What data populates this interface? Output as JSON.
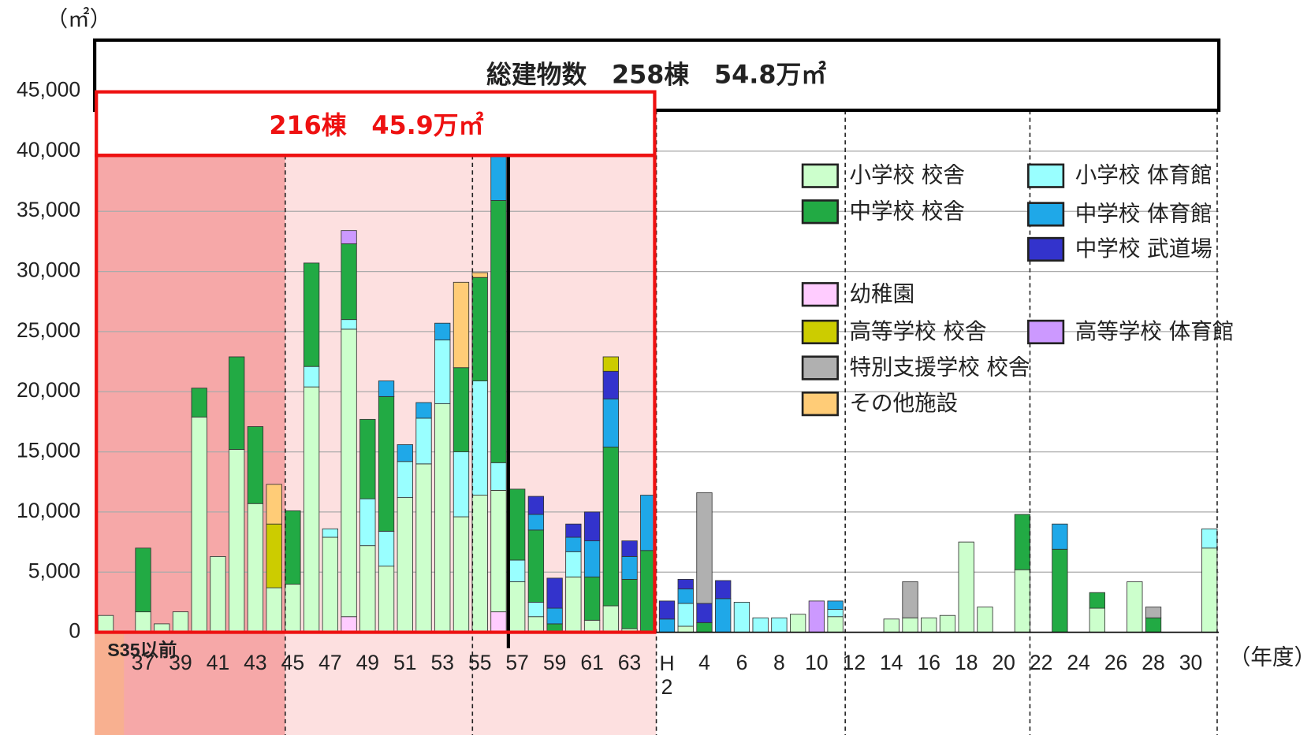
{
  "chart_data": {
    "type": "stacked_bar",
    "title": "総建物数　258棟　54.8万㎡",
    "subtitle": "216棟　45.9万㎡",
    "y_unit": "（㎡）",
    "x_unit": "（年度）",
    "categories": [
      "S35以前",
      null,
      "37",
      null,
      "39",
      null,
      "41",
      null,
      "43",
      null,
      "45",
      null,
      "47",
      null,
      "49",
      null,
      "51",
      null,
      "53",
      null,
      "55",
      null,
      "57",
      null,
      "59",
      null,
      "61",
      null,
      "63",
      null,
      "H2",
      null,
      "4",
      null,
      "6",
      null,
      "8",
      null,
      "10",
      null,
      "12",
      null,
      "14",
      null,
      "16",
      null,
      "18",
      null,
      "20",
      null,
      "22",
      null,
      "24",
      null,
      "26",
      null,
      "28",
      null,
      "30",
      null
    ],
    "ylim": [
      0,
      45000
    ],
    "yticks": [
      0,
      {
        "value": 5000,
        "label": "5,000"
      },
      {
        "value": 10000,
        "label": "10,000"
      },
      {
        "value": 15000,
        "label": "15,000"
      },
      {
        "value": 20000,
        "label": "20,000"
      },
      {
        "value": 25000,
        "label": "25,000"
      },
      {
        "value": 30000,
        "label": "30,000"
      },
      {
        "value": 35000,
        "label": "35,000"
      },
      {
        "value": 40000,
        "label": "40,000"
      },
      {
        "value": 45000,
        "label": "45,000"
      }
    ],
    "grid": true,
    "stacked": true,
    "series": [
      {
        "name": "幼稚園",
        "color": "#ffccff",
        "values": [
          0,
          0,
          0,
          0,
          0,
          0,
          0,
          0,
          0,
          0,
          0,
          0,
          0,
          1300,
          0,
          0,
          0,
          0,
          0,
          0,
          0,
          1700,
          0,
          0,
          0,
          0,
          0,
          0,
          0,
          0,
          0,
          0,
          0,
          0,
          0,
          0,
          0,
          0,
          0,
          0,
          0,
          0,
          0,
          0,
          0,
          0,
          0,
          0,
          0,
          0,
          0,
          0,
          0,
          0,
          0,
          0,
          0,
          0,
          0,
          0
        ]
      },
      {
        "name": "小学校 校舎",
        "color": "#ccffcc",
        "values": [
          1400,
          0,
          1700,
          700,
          1700,
          17900,
          6300,
          15200,
          10700,
          3700,
          4000,
          20400,
          7900,
          23900,
          7200,
          5500,
          11200,
          14000,
          19000,
          9600,
          11400,
          10100,
          4200,
          1300,
          0,
          4600,
          1000,
          2200,
          300,
          0,
          0,
          500,
          0,
          0,
          0,
          0,
          0,
          1500,
          0,
          1300,
          0,
          0,
          1100,
          1200,
          1200,
          1400,
          7500,
          2100,
          0,
          5200,
          0,
          0,
          0,
          2000,
          0,
          4200,
          0,
          0,
          0,
          7000
        ]
      },
      {
        "name": "小学校 体育館",
        "color": "#99ffff",
        "values": [
          0,
          0,
          0,
          0,
          0,
          0,
          0,
          0,
          0,
          0,
          0,
          1700,
          700,
          800,
          3900,
          2900,
          3000,
          3800,
          5300,
          5400,
          9500,
          2300,
          1800,
          1200,
          0,
          2100,
          0,
          0,
          0,
          0,
          0,
          1900,
          0,
          0,
          2500,
          1200,
          1200,
          0,
          0,
          600,
          0,
          0,
          0,
          0,
          0,
          0,
          0,
          0,
          0,
          0,
          0,
          0,
          0,
          0,
          0,
          0,
          0,
          0,
          0,
          1600
        ]
      },
      {
        "name": "中学校 校舎",
        "color": "#22aa44",
        "values": [
          0,
          0,
          5300,
          0,
          0,
          2400,
          0,
          7700,
          6400,
          0,
          6100,
          8600,
          0,
          6300,
          6600,
          11200,
          0,
          0,
          0,
          7000,
          8600,
          21800,
          5900,
          6000,
          700,
          0,
          3600,
          13200,
          4100,
          6800,
          0,
          0,
          800,
          0,
          0,
          0,
          0,
          0,
          0,
          0,
          0,
          0,
          0,
          0,
          0,
          0,
          0,
          0,
          0,
          4600,
          0,
          6900,
          0,
          1300,
          0,
          0,
          1200,
          0,
          0,
          0
        ]
      },
      {
        "name": "中学校 体育館",
        "color": "#1fa8e8",
        "values": [
          0,
          0,
          0,
          0,
          0,
          0,
          0,
          0,
          0,
          0,
          0,
          0,
          0,
          0,
          0,
          1300,
          1400,
          1300,
          1400,
          0,
          0,
          4600,
          0,
          1300,
          1300,
          1200,
          3000,
          4000,
          1900,
          4600,
          1100,
          1200,
          0,
          2800,
          0,
          0,
          0,
          0,
          0,
          700,
          0,
          0,
          0,
          0,
          0,
          0,
          0,
          0,
          0,
          0,
          0,
          2100,
          0,
          0,
          0,
          0,
          0,
          0,
          0,
          0
        ]
      },
      {
        "name": "中学校 武道場",
        "color": "#3333cc",
        "values": [
          0,
          0,
          0,
          0,
          0,
          0,
          0,
          0,
          0,
          0,
          0,
          0,
          0,
          0,
          0,
          0,
          0,
          0,
          0,
          0,
          0,
          0,
          0,
          1500,
          2500,
          1100,
          2400,
          2300,
          1300,
          0,
          1500,
          800,
          1600,
          1500,
          0,
          0,
          0,
          0,
          0,
          0,
          0,
          0,
          0,
          0,
          0,
          0,
          0,
          0,
          0,
          0,
          0,
          0,
          0,
          0,
          0,
          0,
          0,
          0,
          0,
          0
        ]
      },
      {
        "name": "高等学校 校舎",
        "color": "#cccc00",
        "values": [
          0,
          0,
          0,
          0,
          0,
          0,
          0,
          0,
          0,
          5300,
          0,
          0,
          0,
          0,
          0,
          0,
          0,
          0,
          0,
          0,
          0,
          0,
          0,
          0,
          0,
          0,
          0,
          1200,
          0,
          0,
          0,
          0,
          0,
          0,
          0,
          0,
          0,
          0,
          0,
          0,
          0,
          0,
          0,
          0,
          0,
          0,
          0,
          0,
          0,
          0,
          0,
          0,
          0,
          0,
          0,
          0,
          0,
          0,
          0,
          0
        ]
      },
      {
        "name": "高等学校 体育館",
        "color": "#cc99ff",
        "values": [
          0,
          0,
          0,
          0,
          0,
          0,
          0,
          0,
          0,
          0,
          0,
          0,
          0,
          1100,
          0,
          0,
          0,
          0,
          0,
          0,
          0,
          0,
          0,
          0,
          0,
          0,
          0,
          0,
          0,
          0,
          0,
          0,
          0,
          0,
          0,
          0,
          0,
          0,
          2600,
          0,
          0,
          0,
          0,
          0,
          0,
          0,
          0,
          0,
          0,
          0,
          0,
          0,
          0,
          0,
          0,
          0,
          0,
          0,
          0,
          0
        ]
      },
      {
        "name": "特別支援学校 校舎",
        "color": "#b0b0b0",
        "values": [
          0,
          0,
          0,
          0,
          0,
          0,
          0,
          0,
          0,
          0,
          0,
          0,
          0,
          0,
          0,
          0,
          0,
          0,
          0,
          0,
          0,
          0,
          0,
          0,
          0,
          0,
          0,
          0,
          0,
          0,
          0,
          0,
          9200,
          0,
          0,
          0,
          0,
          0,
          0,
          0,
          0,
          0,
          0,
          3000,
          0,
          0,
          0,
          0,
          0,
          0,
          0,
          0,
          0,
          0,
          0,
          0,
          900,
          0,
          0,
          0
        ]
      },
      {
        "name": "その他施設",
        "color": "#ffcc77",
        "values": [
          0,
          0,
          0,
          0,
          0,
          0,
          0,
          0,
          0,
          3300,
          0,
          0,
          0,
          0,
          0,
          0,
          0,
          0,
          0,
          7100,
          400,
          0,
          0,
          0,
          0,
          0,
          0,
          0,
          0,
          0,
          0,
          0,
          0,
          0,
          0,
          0,
          0,
          0,
          0,
          0,
          0,
          0,
          0,
          0,
          0,
          0,
          0,
          0,
          0,
          0,
          0,
          0,
          0,
          0,
          0,
          0,
          0,
          0,
          0,
          0
        ]
      }
    ]
  }
}
